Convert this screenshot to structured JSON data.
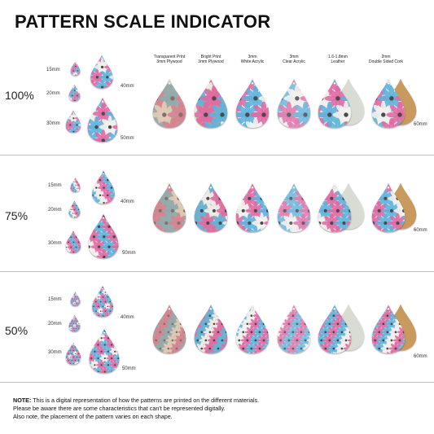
{
  "title": "PATTERN SCALE INDICATOR",
  "materials": [
    {
      "line1": "Transparent Print",
      "line2": "3mm Plywood"
    },
    {
      "line1": "Bright Print",
      "line2": "3mm Plywood"
    },
    {
      "line1": "3mm",
      "line2": "White Acrylic"
    },
    {
      "line1": "3mm",
      "line2": "Clear Acrylic"
    },
    {
      "line1": "1.6-1.8mm",
      "line2": "Leather"
    },
    {
      "line1": "2mm",
      "line2": "Double Sided Cork"
    }
  ],
  "rows": [
    {
      "scale": "100%",
      "sizes": [
        "15mm",
        "20mm",
        "30mm",
        "40mm",
        "50mm"
      ],
      "dimension": "60mm"
    },
    {
      "scale": "75%",
      "sizes": [
        "15mm",
        "20mm",
        "30mm",
        "40mm",
        "50mm"
      ],
      "dimension": "60mm"
    },
    {
      "scale": "50%",
      "sizes": [
        "15mm",
        "20mm",
        "30mm",
        "40mm",
        "50mm"
      ],
      "dimension": "60mm"
    }
  ],
  "note": {
    "label": "NOTE:",
    "line1": " This is a digital representation of how the patterns are printed on the different materials.",
    "line2": "Please be aware there are some characteristics that can't be represented digitally.",
    "line3": "Also note, the placement of the pattern varies on each shape."
  },
  "colors": {
    "pink": "#e06aa4",
    "blue": "#5fb4dd",
    "white_petal": "#f2f0ec",
    "plywood": "#c9a27e",
    "leather": "#d9dcd2",
    "cork": "#c89a5e"
  }
}
